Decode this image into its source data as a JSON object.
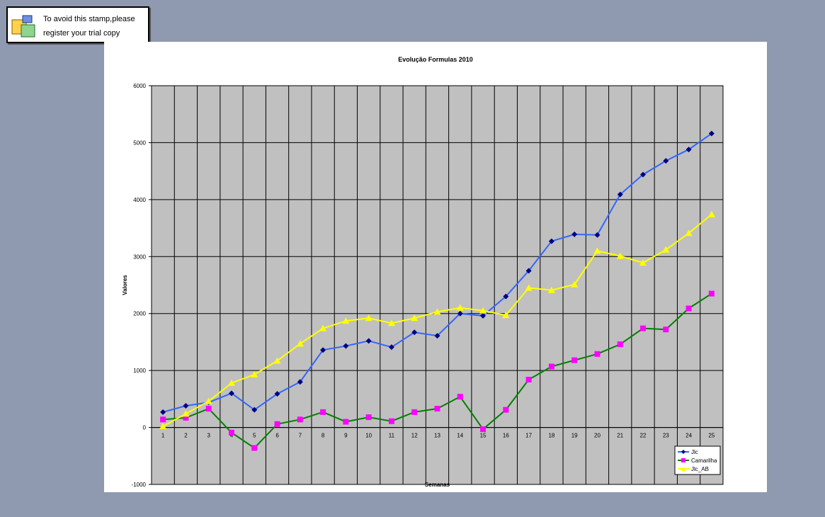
{
  "stamp": {
    "line1": "To avoid this stamp,please",
    "line2": "register your trial copy"
  },
  "colors": {
    "background": "#8f99b0",
    "plot_area": "#c0c0c0",
    "grid": "#000000",
    "jlc": "#3366ff",
    "jlc_marker": "#000080",
    "camarilha": "#008000",
    "camarilha_marker": "#ff00ff",
    "jlc_ab": "#ffff00"
  },
  "chart_data": {
    "type": "line",
    "title": "Evolução Formulas 2010",
    "xlabel": "Semanas",
    "ylabel": "Valores",
    "ylim": [
      -1000,
      6000
    ],
    "yticks": [
      -1000,
      0,
      1000,
      2000,
      3000,
      4000,
      5000,
      6000
    ],
    "grid": true,
    "legend_position": "bottom-right",
    "categories": [
      "1",
      "2",
      "3",
      "4",
      "5",
      "6",
      "7",
      "8",
      "9",
      "10",
      "11",
      "12",
      "13",
      "14",
      "15",
      "16",
      "17",
      "18",
      "19",
      "20",
      "21",
      "22",
      "23",
      "24",
      "25"
    ],
    "series": [
      {
        "name": "Jlc",
        "line_color": "#3366ff",
        "marker": "diamond",
        "marker_color": "#000080",
        "values": [
          270,
          380,
          440,
          600,
          310,
          590,
          800,
          1360,
          1430,
          1520,
          1410,
          1670,
          1610,
          2000,
          1960,
          2300,
          2750,
          3270,
          3390,
          3380,
          4090,
          4440,
          4680,
          4880,
          5160
        ]
      },
      {
        "name": "Camarilha",
        "line_color": "#008000",
        "marker": "square",
        "marker_color": "#ff00ff",
        "values": [
          140,
          170,
          330,
          -90,
          -360,
          60,
          140,
          270,
          100,
          180,
          110,
          270,
          330,
          540,
          -30,
          310,
          840,
          1070,
          1180,
          1290,
          1460,
          1740,
          1720,
          2090,
          2350
        ]
      },
      {
        "name": "Jlc_AB",
        "line_color": "#ffff00",
        "marker": "triangle",
        "marker_color": "#ffff00",
        "values": [
          20,
          240,
          460,
          780,
          930,
          1170,
          1470,
          1740,
          1870,
          1920,
          1830,
          1920,
          2030,
          2100,
          2050,
          1970,
          2450,
          2410,
          2510,
          3100,
          3010,
          2890,
          3120,
          3410,
          3740
        ]
      }
    ]
  }
}
